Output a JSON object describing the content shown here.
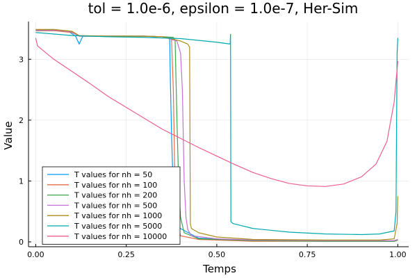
{
  "chart_data": {
    "type": "line",
    "title": "tol = 1.0e-6, epsilon = 1.0e-7, Her-Sim",
    "xlabel": "Temps",
    "ylabel": "Value",
    "xlim": [
      -0.02,
      1.03
    ],
    "ylim": [
      -0.08,
      3.62
    ],
    "x_ticks": [
      0.0,
      0.25,
      0.5,
      0.75,
      1.0
    ],
    "x_tick_labels": [
      "0.00",
      "0.25",
      "0.50",
      "0.75",
      "1.00"
    ],
    "y_ticks": [
      0,
      1,
      2,
      3
    ],
    "y_tick_labels": [
      "0",
      "1",
      "2",
      "3"
    ],
    "grid": true,
    "legend_position": "bottom-left",
    "series": [
      {
        "name": "T values for nh = 50",
        "color": "#009AFA",
        "x": [
          0.0,
          0.05,
          0.09,
          0.11,
          0.12,
          0.13,
          0.2,
          0.3,
          0.33,
          0.35,
          0.36,
          0.365,
          0.37,
          0.372,
          0.375,
          0.38,
          0.39,
          0.45,
          0.6,
          0.8,
          0.95,
          0.99,
          1.0
        ],
        "y": [
          3.47,
          3.47,
          3.46,
          3.38,
          3.25,
          3.38,
          3.38,
          3.38,
          3.37,
          3.37,
          3.36,
          3.35,
          3.33,
          2.6,
          1.8,
          0.8,
          0.25,
          0.06,
          0.02,
          0.01,
          0.01,
          0.01,
          0.03
        ]
      },
      {
        "name": "T values for nh = 100",
        "color": "#E36F47",
        "x": [
          0.0,
          0.05,
          0.1,
          0.12,
          0.2,
          0.3,
          0.35,
          0.37,
          0.375,
          0.38,
          0.385,
          0.39,
          0.4,
          0.45,
          0.6,
          0.8,
          0.95,
          0.99,
          1.0
        ],
        "y": [
          3.47,
          3.47,
          3.44,
          3.38,
          3.38,
          3.38,
          3.37,
          3.36,
          3.34,
          2.5,
          0.8,
          0.3,
          0.1,
          0.04,
          0.01,
          0.01,
          0.01,
          0.01,
          0.03
        ]
      },
      {
        "name": "T values for nh = 200",
        "color": "#3EA44E",
        "x": [
          0.0,
          0.05,
          0.1,
          0.12,
          0.2,
          0.3,
          0.35,
          0.38,
          0.385,
          0.39,
          0.395,
          0.4,
          0.41,
          0.45,
          0.6,
          0.8,
          0.95,
          0.99,
          1.0
        ],
        "y": [
          3.48,
          3.48,
          3.45,
          3.38,
          3.38,
          3.38,
          3.37,
          3.36,
          3.3,
          2.0,
          0.9,
          0.4,
          0.15,
          0.05,
          0.02,
          0.01,
          0.01,
          0.01,
          0.03
        ]
      },
      {
        "name": "T values for nh = 500",
        "color": "#C371D2",
        "x": [
          0.0,
          0.05,
          0.1,
          0.12,
          0.2,
          0.3,
          0.35,
          0.39,
          0.4,
          0.405,
          0.41,
          0.415,
          0.42,
          0.43,
          0.5,
          0.6,
          0.8,
          0.95,
          0.99,
          1.0
        ],
        "y": [
          3.48,
          3.48,
          3.45,
          3.38,
          3.38,
          3.38,
          3.37,
          3.3,
          3.1,
          2.5,
          1.0,
          0.4,
          0.2,
          0.1,
          0.05,
          0.03,
          0.02,
          0.02,
          0.02,
          0.04
        ]
      },
      {
        "name": "T values for nh = 1000",
        "color": "#AC8E18",
        "x": [
          0.0,
          0.05,
          0.1,
          0.12,
          0.2,
          0.3,
          0.35,
          0.4,
          0.42,
          0.425,
          0.427,
          0.43,
          0.45,
          0.5,
          0.6,
          0.8,
          0.95,
          0.99,
          0.998,
          1.0
        ],
        "y": [
          3.49,
          3.49,
          3.46,
          3.39,
          3.38,
          3.38,
          3.37,
          3.3,
          3.25,
          3.2,
          0.3,
          0.22,
          0.15,
          0.08,
          0.04,
          0.03,
          0.03,
          0.05,
          0.3,
          0.75
        ]
      },
      {
        "name": "T values for nh = 5000",
        "color": "#00A9AD",
        "x": [
          0.0,
          0.1,
          0.2,
          0.3,
          0.4,
          0.5,
          0.537,
          0.538,
          0.539,
          0.545,
          0.6,
          0.7,
          0.8,
          0.9,
          0.95,
          0.99,
          0.995,
          0.998,
          1.0
        ],
        "y": [
          3.44,
          3.39,
          3.37,
          3.36,
          3.34,
          3.28,
          3.25,
          3.41,
          0.33,
          0.3,
          0.22,
          0.16,
          0.13,
          0.12,
          0.13,
          0.18,
          0.5,
          3.1,
          3.35
        ]
      },
      {
        "name": "T values for nh = 10000",
        "color": "#ED5D92",
        "x": [
          0.0,
          0.005,
          0.05,
          0.1,
          0.15,
          0.2,
          0.25,
          0.3,
          0.35,
          0.4,
          0.45,
          0.5,
          0.55,
          0.6,
          0.65,
          0.7,
          0.75,
          0.8,
          0.85,
          0.9,
          0.94,
          0.97,
          0.99,
          1.0
        ],
        "y": [
          3.35,
          3.22,
          3.0,
          2.8,
          2.6,
          2.39,
          2.21,
          2.03,
          1.85,
          1.7,
          1.55,
          1.41,
          1.27,
          1.14,
          1.04,
          0.96,
          0.92,
          0.91,
          0.95,
          1.07,
          1.28,
          1.65,
          2.3,
          2.97
        ]
      }
    ]
  }
}
